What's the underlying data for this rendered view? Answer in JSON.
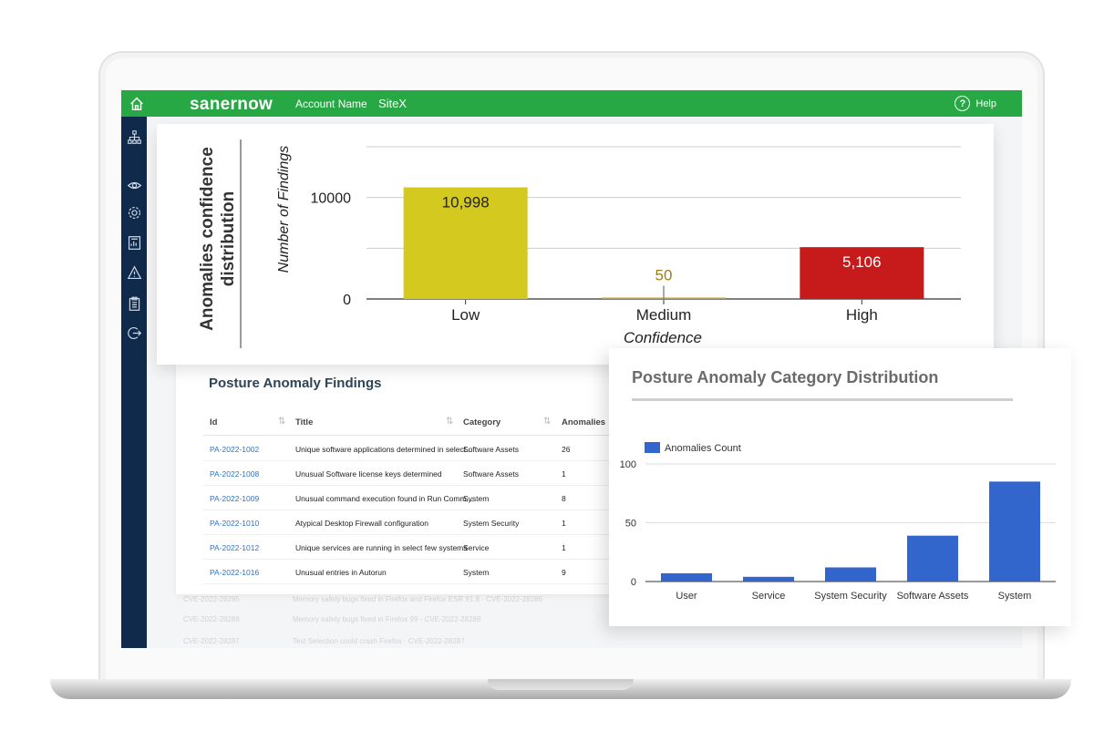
{
  "header": {
    "brand": "sanernow",
    "account": "Account Name",
    "site": "SiteX",
    "help": "Help",
    "color": "#27a844"
  },
  "sidebar": {
    "icons": [
      "home-icon",
      "hierarchy-icon",
      "eye-icon",
      "gear-icon",
      "report-icon",
      "warning-icon",
      "clipboard-icon",
      "logout-icon"
    ],
    "color": "#0f2a4a"
  },
  "findings": {
    "title": "Posture Anomaly Findings",
    "columns": [
      "Id",
      "Title",
      "Category",
      "Anomalies"
    ],
    "rows": [
      {
        "id": "PA-2022-1002",
        "title": "Unique software applications determined in select...",
        "category": "Software Assets",
        "count": "26"
      },
      {
        "id": "PA-2022-1008",
        "title": "Unusual Software license keys determined",
        "category": "Software Assets",
        "count": "1"
      },
      {
        "id": "PA-2022-1009",
        "title": "Unusual command execution found in Run Comm...",
        "category": "System",
        "count": "8"
      },
      {
        "id": "PA-2022-1010",
        "title": "Atypical Desktop Firewall configuration",
        "category": "System Security",
        "count": "1"
      },
      {
        "id": "PA-2022-1012",
        "title": "Unique services are running in select few systems",
        "category": "Service",
        "count": "1"
      },
      {
        "id": "PA-2022-1016",
        "title": "Unusual entries in Autorun",
        "category": "System",
        "count": "9"
      }
    ]
  },
  "background_rows": [
    {
      "id": "CVE-2022-28285",
      "title": "Memory safety bugs fixed in Firefox and Firefox ESR 91.8 - CVE-2022-28286"
    },
    {
      "id": "CVE-2022-28288",
      "title": "Memory safety bugs fixed in Firefox 99 - CVE-2022-28288"
    },
    {
      "id": "CVE-2022-28287",
      "title": "Text Selection could crash Firefox - CVE-2022-28287"
    }
  ],
  "chart_data": [
    {
      "type": "bar",
      "title": "Anomalies confidence distribution",
      "xlabel": "Confidence",
      "ylabel": "Number of Findings",
      "categories": [
        "Low",
        "Medium",
        "High"
      ],
      "values": [
        10998,
        50,
        5106
      ],
      "data_labels": [
        "10,998",
        "50",
        "5,106"
      ],
      "colors": [
        "#d4c91f",
        "#c9a227",
        "#c71a1a"
      ],
      "ylim": [
        0,
        15000
      ],
      "yticks": [
        0,
        10000
      ],
      "grid": true
    },
    {
      "type": "bar",
      "title": "Posture Anomaly Category Distribution",
      "categories": [
        "User",
        "Service",
        "System Security",
        "Software Assets",
        "System"
      ],
      "series": [
        {
          "name": "Anomalies Count",
          "values": [
            7,
            4,
            12,
            39,
            85
          ],
          "color": "#3366cc"
        }
      ],
      "ylim": [
        0,
        100
      ],
      "yticks": [
        0,
        50,
        100
      ],
      "grid": true,
      "legend": "top-left"
    }
  ]
}
